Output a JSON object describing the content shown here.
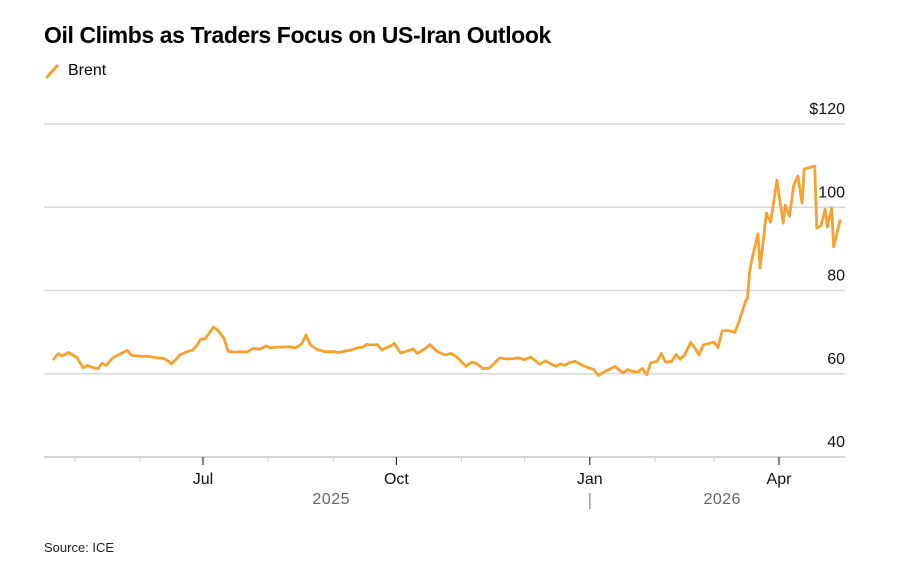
{
  "chart_data": {
    "type": "line",
    "title": "Oil Climbs as Traders Focus on US-Iran Outlook",
    "source": "Source: ICE",
    "xlabel": "",
    "ylabel": "",
    "ylim": [
      40,
      120
    ],
    "yticks": [
      {
        "value": 120,
        "label": "$120"
      },
      {
        "value": 100,
        "label": "100"
      },
      {
        "value": 80,
        "label": "80"
      },
      {
        "value": 60,
        "label": "60"
      },
      {
        "value": 40,
        "label": "40"
      }
    ],
    "grid": true,
    "legend_position": "top-left",
    "xlim": [
      "2025-04-17",
      "2026-05-01"
    ],
    "xticks_major": [
      {
        "date": "2025-07-01",
        "label": "Jul"
      },
      {
        "date": "2025-10-01",
        "label": "Oct"
      },
      {
        "date": "2026-01-01",
        "label": "Jan"
      },
      {
        "date": "2026-04-01",
        "label": "Apr"
      }
    ],
    "xticks_minor": [
      "2025-05-01",
      "2025-06-01",
      "2025-08-01",
      "2025-09-01",
      "2025-11-01",
      "2025-12-01",
      "2026-02-01",
      "2026-03-01"
    ],
    "year_labels": [
      {
        "label": "2025",
        "center": "2025-08-31"
      },
      {
        "label": "2026",
        "center": "2026-03-05"
      }
    ],
    "year_divider": "2026-01-01",
    "series": [
      {
        "name": "Brent",
        "color": "#f9a12e",
        "points": [
          [
            "2025-04-21",
            63.5
          ],
          [
            "2025-04-23",
            64.8
          ],
          [
            "2025-04-25",
            64.3
          ],
          [
            "2025-04-28",
            65.1
          ],
          [
            "2025-04-30",
            64.5
          ],
          [
            "2025-05-02",
            63.9
          ],
          [
            "2025-05-05",
            61.4
          ],
          [
            "2025-05-07",
            62.0
          ],
          [
            "2025-05-09",
            61.6
          ],
          [
            "2025-05-12",
            61.2
          ],
          [
            "2025-05-14",
            62.5
          ],
          [
            "2025-05-16",
            62.0
          ],
          [
            "2025-05-19",
            63.8
          ],
          [
            "2025-05-22",
            64.6
          ],
          [
            "2025-05-26",
            65.6
          ],
          [
            "2025-05-28",
            64.4
          ],
          [
            "2025-06-02",
            64.2
          ],
          [
            "2025-06-05",
            64.2
          ],
          [
            "2025-06-09",
            63.8
          ],
          [
            "2025-06-12",
            63.7
          ],
          [
            "2025-06-14",
            63.2
          ],
          [
            "2025-06-16",
            62.4
          ],
          [
            "2025-06-18",
            63.4
          ],
          [
            "2025-06-20",
            64.5
          ],
          [
            "2025-06-22",
            65.0
          ],
          [
            "2025-06-24",
            65.4
          ],
          [
            "2025-06-26",
            65.6
          ],
          [
            "2025-06-28",
            66.8
          ],
          [
            "2025-06-30",
            68.3
          ],
          [
            "2025-07-02",
            68.4
          ],
          [
            "2025-07-04",
            69.8
          ],
          [
            "2025-07-06",
            71.2
          ],
          [
            "2025-07-08",
            70.5
          ],
          [
            "2025-07-11",
            68.5
          ],
          [
            "2025-07-13",
            65.4
          ],
          [
            "2025-07-16",
            65.2
          ],
          [
            "2025-07-19",
            65.3
          ],
          [
            "2025-07-22",
            65.2
          ],
          [
            "2025-07-25",
            66.1
          ],
          [
            "2025-07-28",
            65.9
          ],
          [
            "2025-07-31",
            66.7
          ],
          [
            "2025-08-02",
            66.2
          ],
          [
            "2025-08-05",
            66.4
          ],
          [
            "2025-08-08",
            66.4
          ],
          [
            "2025-08-11",
            66.5
          ],
          [
            "2025-08-14",
            66.2
          ],
          [
            "2025-08-17",
            67.2
          ],
          [
            "2025-08-19",
            69.3
          ],
          [
            "2025-08-21",
            67.0
          ],
          [
            "2025-08-24",
            65.9
          ],
          [
            "2025-08-28",
            65.3
          ],
          [
            "2025-09-01",
            65.3
          ],
          [
            "2025-09-04",
            65.1
          ],
          [
            "2025-09-07",
            65.5
          ],
          [
            "2025-09-10",
            65.8
          ],
          [
            "2025-09-13",
            66.3
          ],
          [
            "2025-09-15",
            66.4
          ],
          [
            "2025-09-17",
            67.1
          ],
          [
            "2025-09-19",
            66.9
          ],
          [
            "2025-09-22",
            67.0
          ],
          [
            "2025-09-24",
            65.7
          ],
          [
            "2025-09-26",
            66.2
          ],
          [
            "2025-09-28",
            66.6
          ],
          [
            "2025-09-30",
            67.3
          ],
          [
            "2025-10-03",
            65.0
          ],
          [
            "2025-10-06",
            65.4
          ],
          [
            "2025-10-09",
            66.0
          ],
          [
            "2025-10-11",
            64.9
          ],
          [
            "2025-10-14",
            65.8
          ],
          [
            "2025-10-17",
            67.0
          ],
          [
            "2025-10-19",
            66.0
          ],
          [
            "2025-10-21",
            65.2
          ],
          [
            "2025-10-24",
            64.5
          ],
          [
            "2025-10-27",
            64.9
          ],
          [
            "2025-10-29",
            64.3
          ],
          [
            "2025-10-31",
            63.4
          ],
          [
            "2025-11-03",
            61.8
          ],
          [
            "2025-11-06",
            62.8
          ],
          [
            "2025-11-08",
            62.5
          ],
          [
            "2025-11-11",
            61.3
          ],
          [
            "2025-11-14",
            61.3
          ],
          [
            "2025-11-17",
            62.7
          ],
          [
            "2025-11-19",
            63.8
          ],
          [
            "2025-11-22",
            63.6
          ],
          [
            "2025-11-25",
            63.6
          ],
          [
            "2025-11-28",
            63.8
          ],
          [
            "2025-12-01",
            63.4
          ],
          [
            "2025-12-04",
            64.0
          ],
          [
            "2025-12-06",
            63.2
          ],
          [
            "2025-12-08",
            62.3
          ],
          [
            "2025-12-11",
            63.1
          ],
          [
            "2025-12-14",
            62.2
          ],
          [
            "2025-12-16",
            61.8
          ],
          [
            "2025-12-18",
            62.4
          ],
          [
            "2025-12-20",
            62.0
          ],
          [
            "2025-12-22",
            62.6
          ],
          [
            "2025-12-25",
            63.0
          ],
          [
            "2025-12-28",
            62.2
          ],
          [
            "2025-12-31",
            61.5
          ],
          [
            "2026-01-03",
            61.0
          ],
          [
            "2026-01-05",
            59.6
          ],
          [
            "2026-01-08",
            60.5
          ],
          [
            "2026-01-11",
            61.2
          ],
          [
            "2026-01-13",
            61.8
          ],
          [
            "2026-01-15",
            60.9
          ],
          [
            "2026-01-17",
            60.2
          ],
          [
            "2026-01-19",
            61.0
          ],
          [
            "2026-01-21",
            60.6
          ],
          [
            "2026-01-24",
            60.4
          ],
          [
            "2026-01-26",
            61.3
          ],
          [
            "2026-01-28",
            59.8
          ],
          [
            "2026-01-30",
            62.6
          ],
          [
            "2026-02-02",
            63.0
          ],
          [
            "2026-02-04",
            64.9
          ],
          [
            "2026-02-06",
            62.8
          ],
          [
            "2026-02-09",
            63.0
          ],
          [
            "2026-02-11",
            64.6
          ],
          [
            "2026-02-13",
            63.5
          ],
          [
            "2026-02-15",
            64.4
          ],
          [
            "2026-02-18",
            67.5
          ],
          [
            "2026-02-20",
            66.2
          ],
          [
            "2026-02-22",
            64.5
          ],
          [
            "2026-02-24",
            66.9
          ],
          [
            "2026-02-27",
            67.3
          ],
          [
            "2026-03-01",
            67.6
          ],
          [
            "2026-03-03",
            66.3
          ],
          [
            "2026-03-05",
            70.3
          ],
          [
            "2026-03-08",
            70.4
          ],
          [
            "2026-03-11",
            69.9
          ],
          [
            "2026-03-13",
            72.6
          ],
          [
            "2026-03-16",
            77.3
          ],
          [
            "2026-03-17",
            78.2
          ],
          [
            "2026-03-18",
            84.5
          ],
          [
            "2026-03-19",
            87.3
          ],
          [
            "2026-03-22",
            93.6
          ],
          [
            "2026-03-23",
            85.4
          ],
          [
            "2026-03-26",
            98.6
          ],
          [
            "2026-03-28",
            96.4
          ],
          [
            "2026-03-30",
            103.0
          ],
          [
            "2026-03-31",
            106.5
          ],
          [
            "2026-04-03",
            96.2
          ],
          [
            "2026-04-04",
            100.5
          ],
          [
            "2026-04-06",
            97.8
          ],
          [
            "2026-04-08",
            105.3
          ],
          [
            "2026-04-10",
            107.5
          ],
          [
            "2026-04-12",
            101.0
          ],
          [
            "2026-04-13",
            109.2
          ],
          [
            "2026-04-18",
            109.9
          ],
          [
            "2026-04-19",
            95.0
          ],
          [
            "2026-04-21",
            95.6
          ],
          [
            "2026-04-23",
            99.5
          ],
          [
            "2026-04-24",
            95.2
          ],
          [
            "2026-04-26",
            99.8
          ],
          [
            "2026-04-27",
            90.5
          ],
          [
            "2026-04-30",
            96.8
          ]
        ]
      }
    ]
  },
  "legend": {
    "items": [
      {
        "label": "Brent",
        "color": "#f9a12e"
      }
    ]
  }
}
